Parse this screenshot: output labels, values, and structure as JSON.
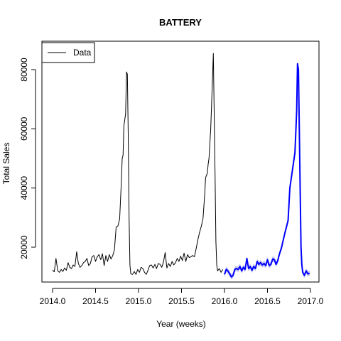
{
  "chart_data": {
    "type": "line",
    "title": "BATTERY",
    "xlabel": "Year (weeks)",
    "ylabel": "Total Sales",
    "xlim": [
      2014.0,
      2017.0
    ],
    "ylim": [
      8000,
      90000
    ],
    "x_ticks": [
      2014.0,
      2014.5,
      2015.0,
      2015.5,
      2016.0,
      2016.5,
      2017.0
    ],
    "x_tick_labels": [
      "2014.0",
      "2014.5",
      "2015.0",
      "2015.5",
      "2016.0",
      "2016.5",
      "2017.0"
    ],
    "y_ticks": [
      20000,
      40000,
      60000,
      80000
    ],
    "y_tick_labels": [
      "20000",
      "40000",
      "60000",
      "80000"
    ],
    "legend": {
      "position": "top-left",
      "entries": [
        {
          "label": "Data",
          "color": "#000000"
        }
      ]
    },
    "grid": false,
    "series": [
      {
        "name": "Data",
        "color": "#000000",
        "points": [
          [
            2014.0,
            12300
          ],
          [
            2014.02,
            11700
          ],
          [
            2014.04,
            16200
          ],
          [
            2014.06,
            12000
          ],
          [
            2014.08,
            11500
          ],
          [
            2014.1,
            12500
          ],
          [
            2014.12,
            11800
          ],
          [
            2014.14,
            13000
          ],
          [
            2014.16,
            12200
          ],
          [
            2014.18,
            14800
          ],
          [
            2014.2,
            13200
          ],
          [
            2014.22,
            12800
          ],
          [
            2014.24,
            14000
          ],
          [
            2014.26,
            13500
          ],
          [
            2014.28,
            18500
          ],
          [
            2014.3,
            14500
          ],
          [
            2014.32,
            13200
          ],
          [
            2014.34,
            13800
          ],
          [
            2014.36,
            14800
          ],
          [
            2014.38,
            15200
          ],
          [
            2014.4,
            16200
          ],
          [
            2014.42,
            13800
          ],
          [
            2014.44,
            14500
          ],
          [
            2014.46,
            16800
          ],
          [
            2014.48,
            17200
          ],
          [
            2014.5,
            15200
          ],
          [
            2014.52,
            16800
          ],
          [
            2014.54,
            17500
          ],
          [
            2014.56,
            15800
          ],
          [
            2014.58,
            17800
          ],
          [
            2014.6,
            13800
          ],
          [
            2014.62,
            17200
          ],
          [
            2014.64,
            15200
          ],
          [
            2014.66,
            17500
          ],
          [
            2014.68,
            16000
          ],
          [
            2014.7,
            17200
          ],
          [
            2014.72,
            19200
          ],
          [
            2014.74,
            26800
          ],
          [
            2014.76,
            27200
          ],
          [
            2014.78,
            29500
          ],
          [
            2014.8,
            42000
          ],
          [
            2014.81,
            50000
          ],
          [
            2014.82,
            51000
          ],
          [
            2014.83,
            61000
          ],
          [
            2014.85,
            65000
          ],
          [
            2014.86,
            79200
          ],
          [
            2014.87,
            78500
          ],
          [
            2014.88,
            58000
          ],
          [
            2014.89,
            30000
          ],
          [
            2014.9,
            14000
          ],
          [
            2014.91,
            11000
          ],
          [
            2014.93,
            10800
          ],
          [
            2014.95,
            11800
          ],
          [
            2014.97,
            10800
          ],
          [
            2014.99,
            12500
          ],
          [
            2015.01,
            11500
          ],
          [
            2015.03,
            13200
          ],
          [
            2015.05,
            12800
          ],
          [
            2015.07,
            11500
          ],
          [
            2015.09,
            10800
          ],
          [
            2015.11,
            12200
          ],
          [
            2015.13,
            13800
          ],
          [
            2015.15,
            14000
          ],
          [
            2015.17,
            13000
          ],
          [
            2015.19,
            14200
          ],
          [
            2015.21,
            12800
          ],
          [
            2015.23,
            14500
          ],
          [
            2015.25,
            14200
          ],
          [
            2015.27,
            13200
          ],
          [
            2015.29,
            15000
          ],
          [
            2015.31,
            18200
          ],
          [
            2015.33,
            13000
          ],
          [
            2015.35,
            14500
          ],
          [
            2015.37,
            13500
          ],
          [
            2015.39,
            15200
          ],
          [
            2015.41,
            14000
          ],
          [
            2015.43,
            14800
          ],
          [
            2015.45,
            16200
          ],
          [
            2015.47,
            15200
          ],
          [
            2015.49,
            17000
          ],
          [
            2015.51,
            15500
          ],
          [
            2015.53,
            18000
          ],
          [
            2015.55,
            15200
          ],
          [
            2015.57,
            17500
          ],
          [
            2015.59,
            16500
          ],
          [
            2015.61,
            16800
          ],
          [
            2015.63,
            17200
          ],
          [
            2015.65,
            16800
          ],
          [
            2015.67,
            19500
          ],
          [
            2015.69,
            22500
          ],
          [
            2015.71,
            25000
          ],
          [
            2015.73,
            27000
          ],
          [
            2015.75,
            29800
          ],
          [
            2015.77,
            38000
          ],
          [
            2015.78,
            43500
          ],
          [
            2015.8,
            45000
          ],
          [
            2015.81,
            48000
          ],
          [
            2015.82,
            50000
          ],
          [
            2015.84,
            60000
          ],
          [
            2015.85,
            68000
          ],
          [
            2015.87,
            85500
          ],
          [
            2015.88,
            65000
          ],
          [
            2015.89,
            45000
          ],
          [
            2015.9,
            22000
          ],
          [
            2015.91,
            14000
          ],
          [
            2015.92,
            12000
          ],
          [
            2015.94,
            12800
          ],
          [
            2015.96,
            11500
          ],
          [
            2015.98,
            12500
          ]
        ]
      },
      {
        "name": "",
        "color": "#0000ff",
        "band_color": "#9999ee",
        "points": [
          [
            2016.0,
            10800
          ],
          [
            2016.02,
            12500
          ],
          [
            2016.04,
            12000
          ],
          [
            2016.06,
            11000
          ],
          [
            2016.08,
            10000
          ],
          [
            2016.1,
            10500
          ],
          [
            2016.12,
            12500
          ],
          [
            2016.14,
            12800
          ],
          [
            2016.16,
            12500
          ],
          [
            2016.18,
            13500
          ],
          [
            2016.2,
            12000
          ],
          [
            2016.22,
            13200
          ],
          [
            2016.24,
            12500
          ],
          [
            2016.26,
            16200
          ],
          [
            2016.28,
            12800
          ],
          [
            2016.3,
            13500
          ],
          [
            2016.32,
            12200
          ],
          [
            2016.34,
            13500
          ],
          [
            2016.36,
            12800
          ],
          [
            2016.38,
            15200
          ],
          [
            2016.4,
            14200
          ],
          [
            2016.42,
            14800
          ],
          [
            2016.44,
            14000
          ],
          [
            2016.46,
            14500
          ],
          [
            2016.48,
            13800
          ],
          [
            2016.5,
            15800
          ],
          [
            2016.52,
            13800
          ],
          [
            2016.54,
            14200
          ],
          [
            2016.56,
            16000
          ],
          [
            2016.58,
            15800
          ],
          [
            2016.6,
            14200
          ],
          [
            2016.62,
            15500
          ],
          [
            2016.64,
            17800
          ],
          [
            2016.66,
            19500
          ],
          [
            2016.68,
            22000
          ],
          [
            2016.7,
            24500
          ],
          [
            2016.72,
            26800
          ],
          [
            2016.74,
            29000
          ],
          [
            2016.76,
            40000
          ],
          [
            2016.78,
            44000
          ],
          [
            2016.8,
            48000
          ],
          [
            2016.82,
            52000
          ],
          [
            2016.84,
            66000
          ],
          [
            2016.85,
            82000
          ],
          [
            2016.86,
            80000
          ],
          [
            2016.87,
            60000
          ],
          [
            2016.88,
            40000
          ],
          [
            2016.89,
            20000
          ],
          [
            2016.9,
            14000
          ],
          [
            2016.91,
            11500
          ],
          [
            2016.93,
            10500
          ],
          [
            2016.95,
            12000
          ],
          [
            2016.97,
            11000
          ],
          [
            2016.99,
            11200
          ]
        ],
        "band_half_width": 900
      }
    ]
  }
}
